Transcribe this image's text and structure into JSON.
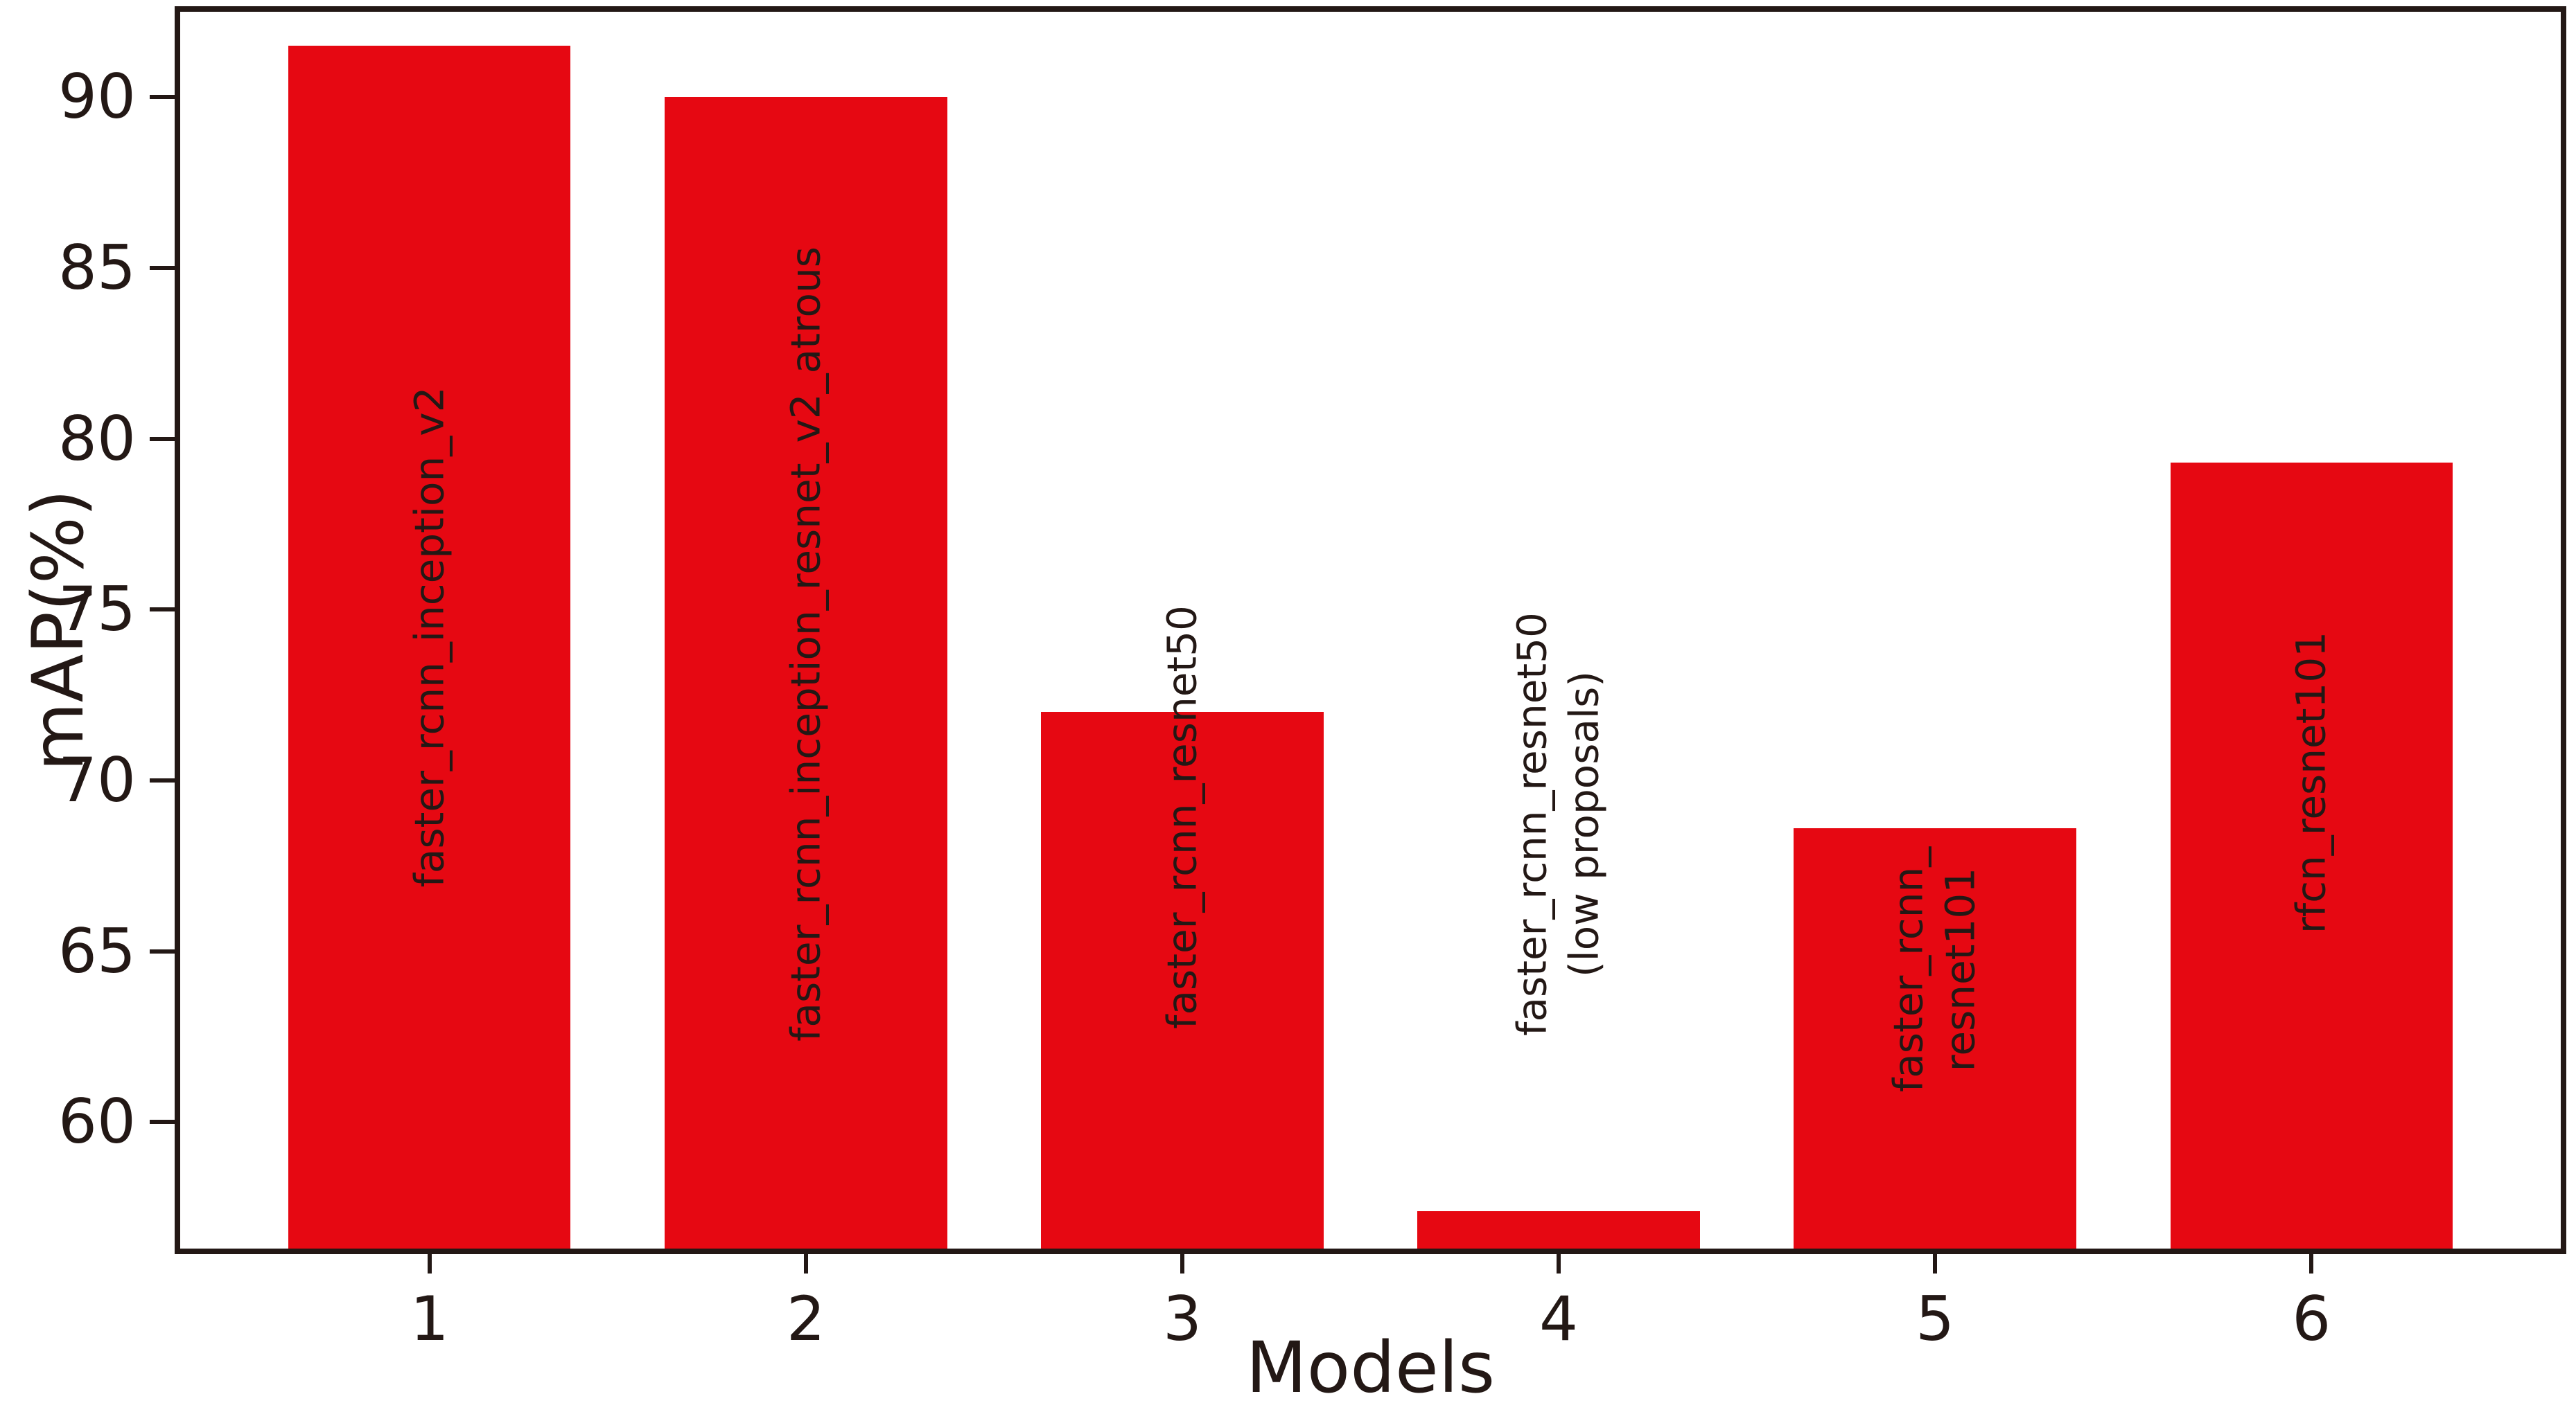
{
  "chart_data": {
    "type": "bar",
    "title": "",
    "xlabel": "Models",
    "ylabel": "mAP(%)",
    "categories": [
      "1",
      "2",
      "3",
      "4",
      "5",
      "6"
    ],
    "values": [
      91.5,
      90.0,
      72.0,
      57.4,
      68.6,
      79.3
    ],
    "bar_labels": [
      [
        "faster_rcnn_inception_v2"
      ],
      [
        "faster_rcnn_inception_resnet_v2_atrous"
      ],
      [
        "faster_rcnn_resnet50"
      ],
      [
        "faster_rcnn_resnet50",
        "(low proposals)"
      ],
      [
        "faster_rcnn_",
        "resnet101"
      ],
      [
        "rfcn_resnet101"
      ]
    ],
    "bar_label_placement": [
      "inside",
      "inside",
      "inside",
      "above",
      "inside",
      "inside"
    ],
    "yticks": [
      60,
      65,
      70,
      75,
      80,
      85,
      90
    ],
    "ylim": [
      56.3,
      92.5
    ],
    "bar_width_fraction": 0.75,
    "grid": false,
    "legend": null,
    "colors": {
      "bar": "#e60812",
      "axis": "#231815",
      "background": "#ffffff"
    }
  }
}
